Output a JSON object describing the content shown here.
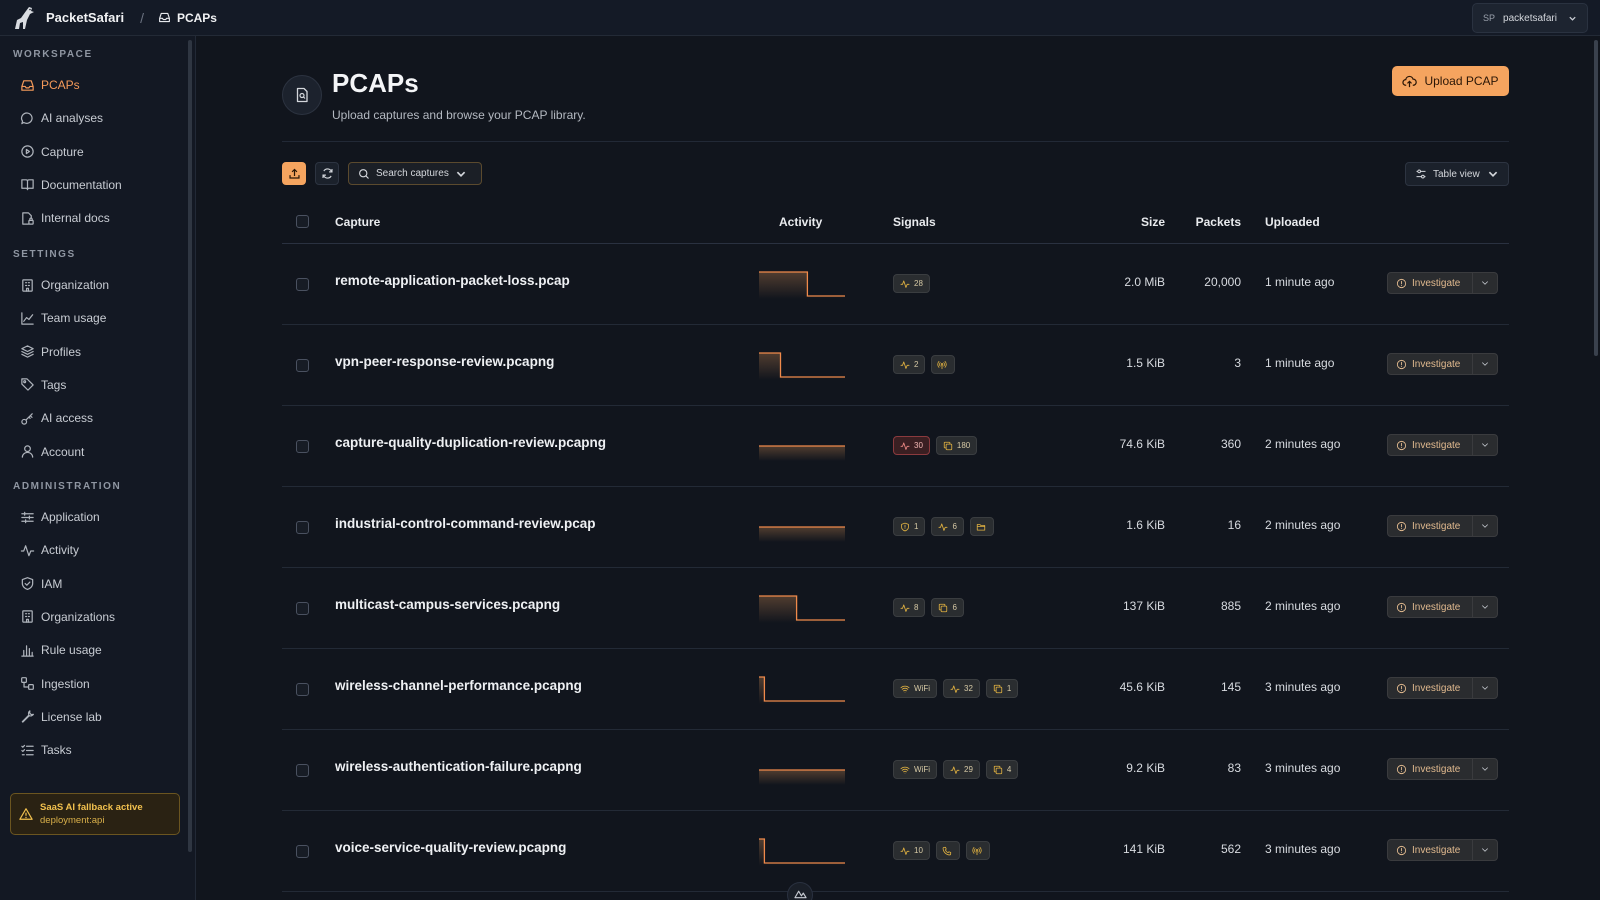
{
  "app": {
    "name": "PacketSafari",
    "breadcrumb_sep": "/",
    "breadcrumb": "PCAPs"
  },
  "user": {
    "initials": "SP",
    "name": "packetsafari"
  },
  "sidebar": {
    "workspace_label": "WORKSPACE",
    "workspace": [
      {
        "label": "PCAPs",
        "icon": "inbox-icon",
        "active": true
      },
      {
        "label": "AI analyses",
        "icon": "chat-bubble-icon"
      },
      {
        "label": "Capture",
        "icon": "play-circle-icon"
      },
      {
        "label": "Documentation",
        "icon": "book-icon"
      },
      {
        "label": "Internal docs",
        "icon": "document-lock-icon"
      }
    ],
    "settings_label": "SETTINGS",
    "settings": [
      {
        "label": "Organization",
        "icon": "building-icon"
      },
      {
        "label": "Team usage",
        "icon": "line-chart-icon"
      },
      {
        "label": "Profiles",
        "icon": "layers-icon"
      },
      {
        "label": "Tags",
        "icon": "tag-icon"
      },
      {
        "label": "AI access",
        "icon": "key-icon"
      },
      {
        "label": "Account",
        "icon": "user-icon"
      }
    ],
    "administration_label": "ADMINISTRATION",
    "administration": [
      {
        "label": "Application",
        "icon": "sliders-icon"
      },
      {
        "label": "Activity",
        "icon": "activity-icon"
      },
      {
        "label": "IAM",
        "icon": "shield-check-icon"
      },
      {
        "label": "Organizations",
        "icon": "building-icon"
      },
      {
        "label": "Rule usage",
        "icon": "bar-chart-icon"
      },
      {
        "label": "Ingestion",
        "icon": "workflow-icon"
      },
      {
        "label": "License lab",
        "icon": "wrench-icon"
      },
      {
        "label": "Tasks",
        "icon": "list-check-icon"
      }
    ],
    "alert": {
      "title": "SaaS AI fallback active",
      "subtitle": "deployment:api"
    }
  },
  "header": {
    "title": "PCAPs",
    "subtitle": "Upload captures and browse your PCAP library.",
    "upload_label": "Upload PCAP"
  },
  "toolbar": {
    "search_label": "Search captures",
    "view_label": "Table view"
  },
  "table": {
    "columns": {
      "capture": "Capture",
      "activity": "Activity",
      "signals": "Signals",
      "size": "Size",
      "packets": "Packets",
      "uploaded": "Uploaded"
    },
    "action_label": "Investigate",
    "rows": [
      {
        "name": "remote-application-packet-loss.pcap",
        "activity": [
          1,
          1,
          1,
          1,
          1,
          1,
          1,
          1,
          1,
          0,
          0,
          0,
          0,
          0,
          0,
          0
        ],
        "signals": [
          {
            "icon": "pulse-icon",
            "text": "28"
          }
        ],
        "size": "2.0 MiB",
        "packets": "20,000",
        "uploaded": "1 minute ago"
      },
      {
        "name": "vpn-peer-response-review.pcapng",
        "activity": [
          1,
          1,
          1,
          1,
          0,
          0,
          0,
          0,
          0,
          0,
          0,
          0,
          0,
          0,
          0,
          0
        ],
        "signals": [
          {
            "icon": "pulse-icon",
            "text": "2"
          },
          {
            "icon": "broadcast-icon",
            "text": ""
          }
        ],
        "size": "1.5 KiB",
        "packets": "3",
        "uploaded": "1 minute ago"
      },
      {
        "name": "capture-quality-duplication-review.pcapng",
        "activity": [
          0.5,
          0.5,
          0.5,
          0.5,
          0.5,
          0.5,
          0.5,
          0.5,
          0.5,
          0.5,
          0.5,
          0.5,
          0.5,
          0.5,
          0.5,
          0.5
        ],
        "signals": [
          {
            "icon": "pulse-icon",
            "text": "30",
            "tone": "red"
          },
          {
            "icon": "copy-icon",
            "text": "180"
          }
        ],
        "size": "74.6 KiB",
        "packets": "360",
        "uploaded": "2 minutes ago"
      },
      {
        "name": "industrial-control-command-review.pcap",
        "activity": [
          0.5,
          0.5,
          0.5,
          0.5,
          0.5,
          0.5,
          0.5,
          0.5,
          0.5,
          0.5,
          0.5,
          0.5,
          0.5,
          0.5,
          0.5,
          0.5
        ],
        "signals": [
          {
            "icon": "shield-alert-icon",
            "text": "1"
          },
          {
            "icon": "pulse-icon",
            "text": "6"
          },
          {
            "icon": "folder-icon",
            "text": ""
          }
        ],
        "size": "1.6 KiB",
        "packets": "16",
        "uploaded": "2 minutes ago"
      },
      {
        "name": "multicast-campus-services.pcapng",
        "activity": [
          1,
          1,
          1,
          1,
          1,
          1,
          1,
          0,
          0,
          0,
          0,
          0,
          0,
          0,
          0,
          0
        ],
        "signals": [
          {
            "icon": "pulse-icon",
            "text": "8"
          },
          {
            "icon": "copy-icon",
            "text": "6"
          }
        ],
        "size": "137 KiB",
        "packets": "885",
        "uploaded": "2 minutes ago"
      },
      {
        "name": "wireless-channel-performance.pcapng",
        "activity": [
          1,
          0,
          0,
          0,
          0,
          0,
          0,
          0,
          0,
          0,
          0,
          0,
          0,
          0,
          0,
          0
        ],
        "signals": [
          {
            "icon": "wifi-icon",
            "text": "WiFi"
          },
          {
            "icon": "pulse-icon",
            "text": "32"
          },
          {
            "icon": "copy-icon",
            "text": "1"
          }
        ],
        "size": "45.6 KiB",
        "packets": "145",
        "uploaded": "3 minutes ago"
      },
      {
        "name": "wireless-authentication-failure.pcapng",
        "activity": [
          0.5,
          0.5,
          0.5,
          0.5,
          0.5,
          0.5,
          0.5,
          0.5,
          0.5,
          0.5,
          0.5,
          0.5,
          0.5,
          0.5,
          0.5,
          0.5
        ],
        "signals": [
          {
            "icon": "wifi-icon",
            "text": "WiFi"
          },
          {
            "icon": "pulse-icon",
            "text": "29"
          },
          {
            "icon": "copy-icon",
            "text": "4"
          }
        ],
        "size": "9.2 KiB",
        "packets": "83",
        "uploaded": "3 minutes ago"
      },
      {
        "name": "voice-service-quality-review.pcapng",
        "activity": [
          1,
          0,
          0,
          0,
          0,
          0,
          0,
          0,
          0,
          0,
          0,
          0,
          0,
          0,
          0,
          0
        ],
        "signals": [
          {
            "icon": "pulse-icon",
            "text": "10"
          },
          {
            "icon": "phone-icon",
            "text": ""
          },
          {
            "icon": "broadcast-icon",
            "text": ""
          }
        ],
        "size": "141 KiB",
        "packets": "562",
        "uploaded": "3 minutes ago"
      }
    ]
  },
  "colors": {
    "accent": "#f5a45f",
    "accent_text": "#f59a5a",
    "background": "#11151d",
    "warning": "#f2c14e"
  }
}
